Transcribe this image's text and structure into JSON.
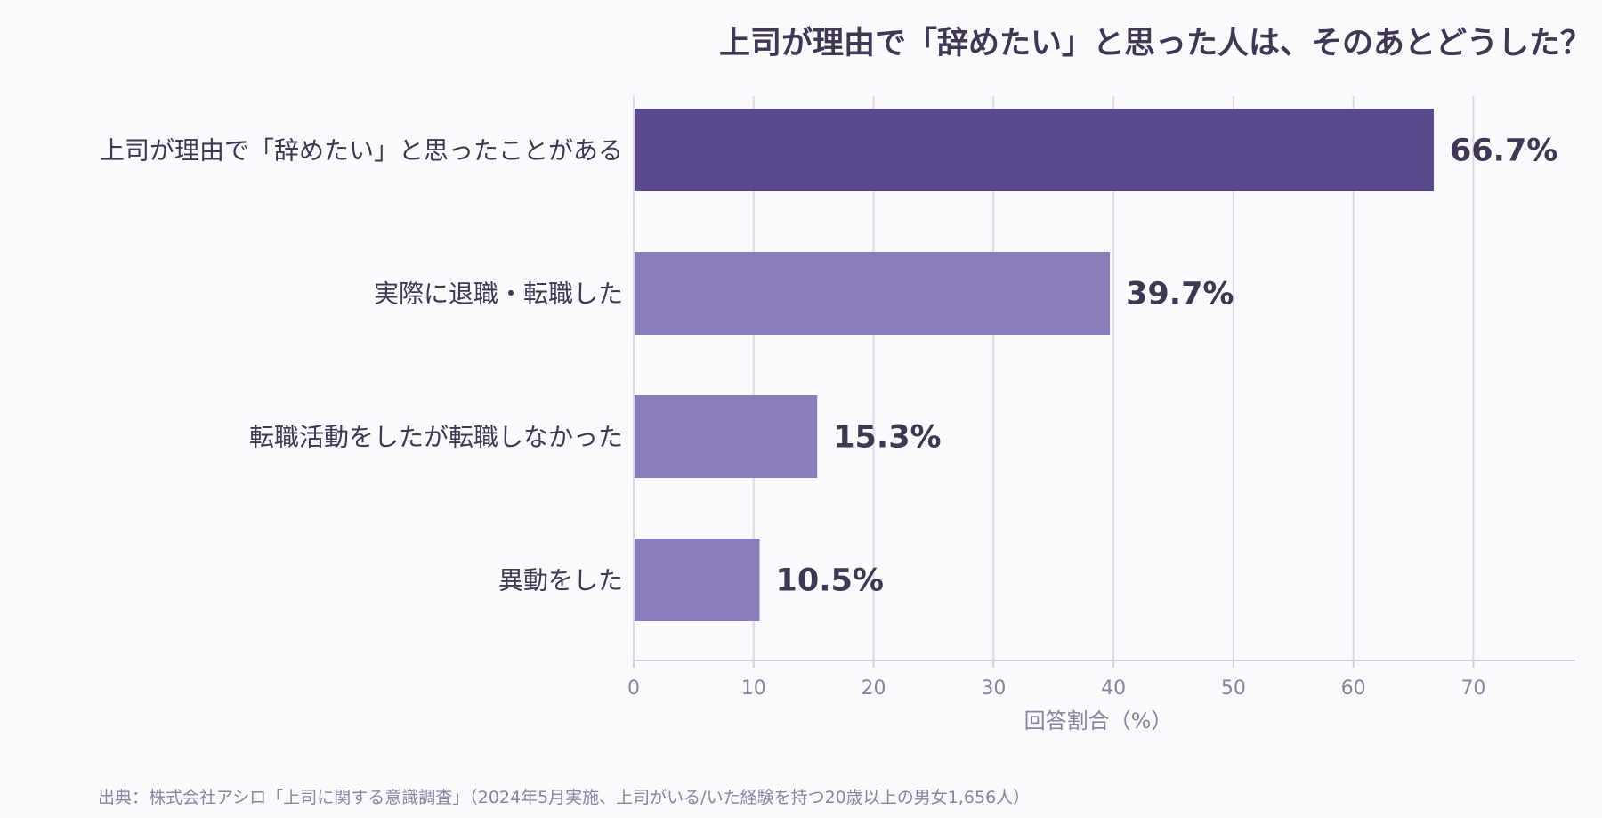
{
  "chart_data": {
    "type": "bar",
    "orientation": "horizontal",
    "title": "上司が理由で「辞めたい」と思った人は、そのあとどうした？",
    "categories": [
      "上司が理由で「辞めたい」と思ったことがある",
      "実際に退職・転職した",
      "転職活動をしたが転職しなかった",
      "異動をした"
    ],
    "values": [
      66.7,
      39.7,
      15.3,
      10.5
    ],
    "value_labels": [
      "66.7%",
      "39.7%",
      "15.3%",
      "10.5%"
    ],
    "colors": [
      "#5b4a8b",
      "#8b7db9",
      "#8b7db9",
      "#8b7db9"
    ],
    "xlabel": "回答割合（%）",
    "ylabel": "",
    "xlim": [
      0,
      78.5
    ],
    "xticks": [
      0,
      10,
      20,
      30,
      40,
      50,
      60,
      70
    ],
    "xtick_labels": [
      "0",
      "10",
      "20",
      "30",
      "40",
      "50",
      "60",
      "70"
    ],
    "grid": true,
    "source": "出典：株式会社アシロ「上司に関する意識調査」（2024年5月実施、上司がいる/いた経験を持つ20歳以上の男女1,656人）"
  }
}
